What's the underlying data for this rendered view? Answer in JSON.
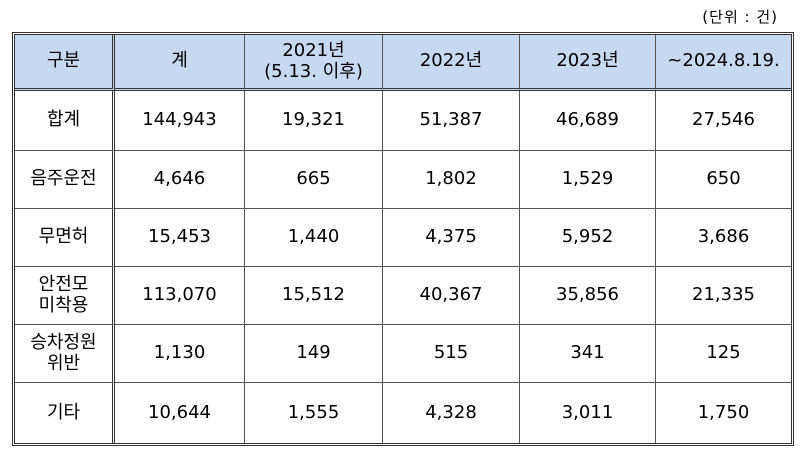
{
  "unit_note": "(단위 :  건)",
  "header": {
    "category": "구분",
    "total": "계",
    "y2021_line1": "2021년",
    "y2021_line2": "(5.13. 이후)",
    "y2022": "2022년",
    "y2023": "2023년",
    "y2024": "~2024.8.19."
  },
  "rows": [
    {
      "label_line1": "합계",
      "label_line2": "",
      "total": "144,943",
      "y2021": "19,321",
      "y2022": "51,387",
      "y2023": "46,689",
      "y2024": "27,546"
    },
    {
      "label_line1": "음주운전",
      "label_line2": "",
      "total": "4,646",
      "y2021": "665",
      "y2022": "1,802",
      "y2023": "1,529",
      "y2024": "650"
    },
    {
      "label_line1": "무면허",
      "label_line2": "",
      "total": "15,453",
      "y2021": "1,440",
      "y2022": "4,375",
      "y2023": "5,952",
      "y2024": "3,686"
    },
    {
      "label_line1": "안전모",
      "label_line2": "미착용",
      "total": "113,070",
      "y2021": "15,512",
      "y2022": "40,367",
      "y2023": "35,856",
      "y2024": "21,335"
    },
    {
      "label_line1": "승차정원",
      "label_line2": "위반",
      "total": "1,130",
      "y2021": "149",
      "y2022": "515",
      "y2023": "341",
      "y2024": "125"
    },
    {
      "label_line1": "기타",
      "label_line2": "",
      "total": "10,644",
      "y2021": "1,555",
      "y2022": "4,328",
      "y2023": "3,011",
      "y2024": "1,750"
    }
  ]
}
